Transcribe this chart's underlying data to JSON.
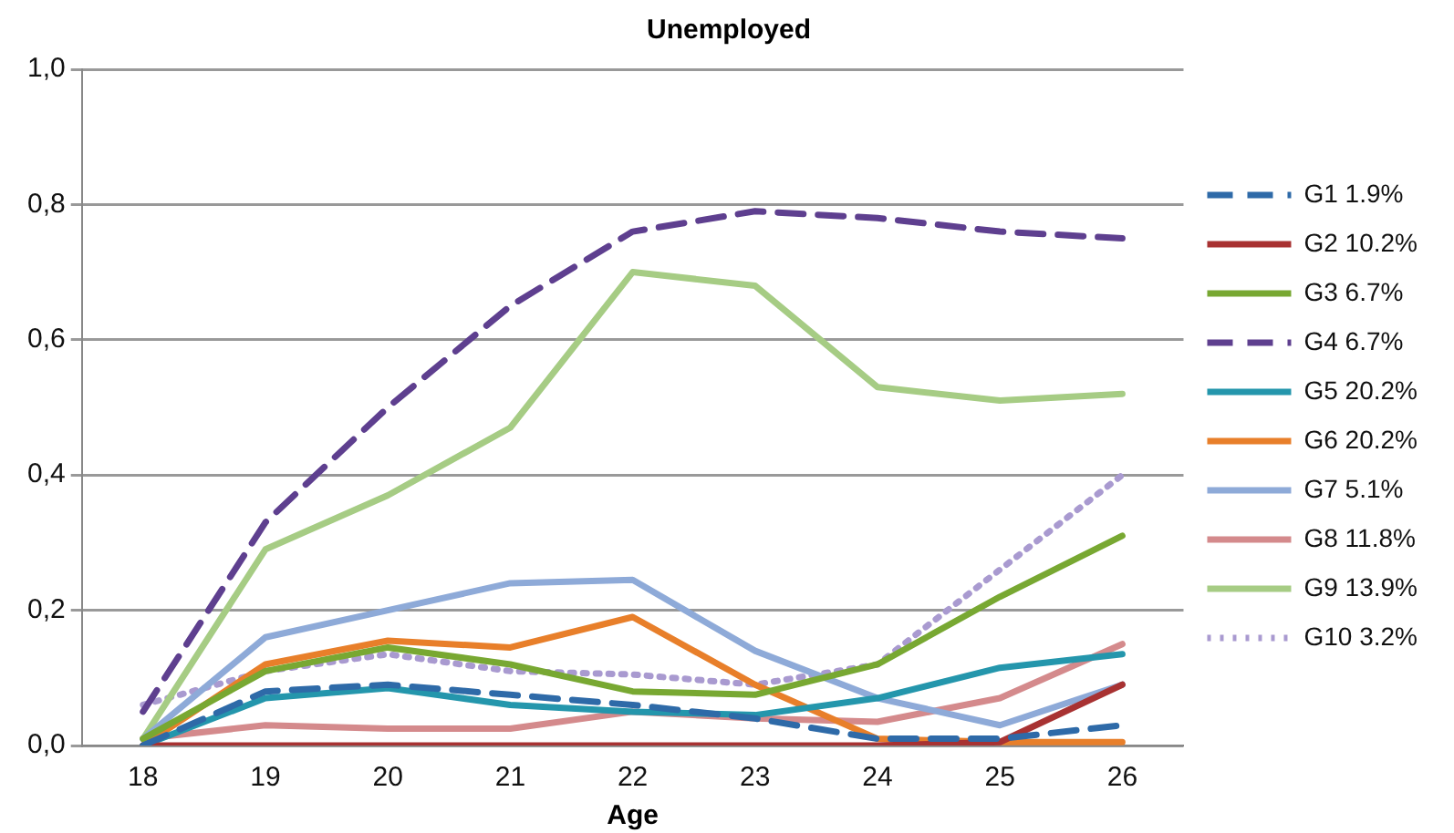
{
  "chart_data": {
    "type": "line",
    "title": "Unemployed",
    "xlabel": "Age",
    "categories": [
      "18",
      "19",
      "20",
      "21",
      "22",
      "23",
      "24",
      "25",
      "26"
    ],
    "ylim": [
      0,
      1
    ],
    "yticks": [
      {
        "value": 0,
        "label": "0,0"
      },
      {
        "value": 0.2,
        "label": "0,2"
      },
      {
        "value": 0.4,
        "label": "0,4"
      },
      {
        "value": 0.6,
        "label": "0,6"
      },
      {
        "value": 0.8,
        "label": "0,8"
      },
      {
        "value": 1,
        "label": "1,0"
      }
    ],
    "grid": "y",
    "legend": "right",
    "marker": "none",
    "series": [
      {
        "name": "G1 1.9%",
        "color": "#2e6aa8",
        "line_style": "dashed",
        "values": [
          0,
          0.08,
          0.09,
          0.075,
          0.06,
          0.04,
          0.01,
          0.01,
          0.03
        ]
      },
      {
        "name": "G2 10.2%",
        "color": "#a83232",
        "line_style": "solid",
        "values": [
          0,
          0,
          0,
          0,
          0,
          0,
          0,
          0.005,
          0.09
        ]
      },
      {
        "name": "G3 6.7%",
        "color": "#78a832",
        "line_style": "solid",
        "values": [
          0.01,
          0.11,
          0.145,
          0.12,
          0.08,
          0.075,
          0.12,
          0.22,
          0.31
        ]
      },
      {
        "name": "G4 6.7%",
        "color": "#5e3f8f",
        "line_style": "dashed",
        "values": [
          0.05,
          0.33,
          0.5,
          0.65,
          0.76,
          0.79,
          0.78,
          0.76,
          0.75
        ]
      },
      {
        "name": "G5 20.2%",
        "color": "#2496ac",
        "line_style": "solid",
        "values": [
          0,
          0.07,
          0.085,
          0.06,
          0.05,
          0.045,
          0.07,
          0.115,
          0.135
        ]
      },
      {
        "name": "G6 20.2%",
        "color": "#e87f2a",
        "line_style": "solid",
        "values": [
          0,
          0.12,
          0.155,
          0.145,
          0.19,
          0.09,
          0.01,
          0.005,
          0.005
        ]
      },
      {
        "name": "G7 5.1%",
        "color": "#8eaad8",
        "line_style": "solid",
        "values": [
          0.01,
          0.16,
          0.2,
          0.24,
          0.245,
          0.14,
          0.07,
          0.03,
          0.09
        ]
      },
      {
        "name": "G8 11.8%",
        "color": "#d48a8c",
        "line_style": "solid",
        "values": [
          0.01,
          0.03,
          0.025,
          0.025,
          0.05,
          0.04,
          0.035,
          0.07,
          0.15
        ]
      },
      {
        "name": "G9 13.9%",
        "color": "#a6cc84",
        "line_style": "solid",
        "values": [
          0.01,
          0.29,
          0.37,
          0.47,
          0.7,
          0.68,
          0.53,
          0.51,
          0.52
        ]
      },
      {
        "name": "G10 3.2%",
        "color": "#a99ad0",
        "line_style": "dotted",
        "values": [
          0.06,
          0.11,
          0.135,
          0.11,
          0.105,
          0.09,
          0.12,
          0.26,
          0.4
        ]
      }
    ]
  }
}
